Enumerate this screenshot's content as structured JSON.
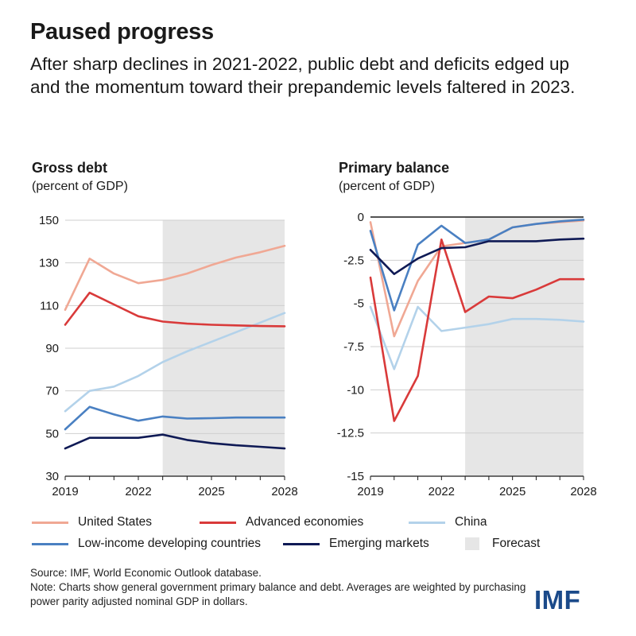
{
  "title": "Paused progress",
  "subtitle": "After sharp declines in 2021-2022, public debt and deficits edged up and the momentum toward their prepandemic levels faltered in 2023.",
  "colors": {
    "united_states": "#f0a894",
    "advanced_economies": "#d93a3a",
    "china": "#b3d2ea",
    "low_income": "#4a80c2",
    "emerging_markets": "#0f1a55",
    "forecast": "#e6e6e6"
  },
  "legend": [
    {
      "key": "united_states",
      "label": "United States"
    },
    {
      "key": "advanced_economies",
      "label": "Advanced economies"
    },
    {
      "key": "china",
      "label": "China"
    },
    {
      "key": "low_income",
      "label": "Low-income developing countries"
    },
    {
      "key": "emerging_markets",
      "label": "Emerging markets"
    },
    {
      "key": "forecast",
      "label": "Forecast"
    }
  ],
  "chart_data": [
    {
      "type": "line",
      "title": "Gross debt",
      "subtitle": "(percent of GDP)",
      "x": [
        2019,
        2020,
        2021,
        2022,
        2023,
        2024,
        2025,
        2026,
        2027,
        2028
      ],
      "x_tick_labels": [
        "2019",
        "2022",
        "2025",
        "2028"
      ],
      "y_tick_labels": [
        "150",
        "130",
        "110",
        "90",
        "70",
        "50",
        "30"
      ],
      "ylim": [
        30,
        150
      ],
      "forecast_from": 2023,
      "grid": true,
      "series": [
        {
          "name": "United States",
          "key": "united_states",
          "values": [
            108,
            132,
            125,
            120.5,
            122,
            125,
            129,
            132.5,
            135,
            138
          ]
        },
        {
          "name": "Advanced economies",
          "key": "advanced_economies",
          "values": [
            101,
            116,
            110.5,
            105,
            102.5,
            101.5,
            101,
            100.7,
            100.4,
            100.3
          ]
        },
        {
          "name": "China",
          "key": "china",
          "values": [
            60.5,
            70,
            72,
            77,
            83.5,
            88.5,
            93,
            97.5,
            102,
            106.5
          ]
        },
        {
          "name": "Low-income developing countries",
          "key": "low_income",
          "values": [
            52,
            62.5,
            59,
            56,
            58,
            57,
            57.2,
            57.5,
            57.5,
            57.5
          ]
        },
        {
          "name": "Emerging markets",
          "key": "emerging_markets",
          "values": [
            43,
            48,
            48,
            48,
            49.5,
            47,
            45.5,
            44.5,
            43.8,
            43
          ]
        }
      ]
    },
    {
      "type": "line",
      "title": "Primary balance",
      "subtitle": "(percent of GDP)",
      "x": [
        2019,
        2020,
        2021,
        2022,
        2023,
        2024,
        2025,
        2026,
        2027,
        2028
      ],
      "x_tick_labels": [
        "2019",
        "2022",
        "2025",
        "2028"
      ],
      "y_tick_labels": [
        "0",
        "-2.5",
        "-5",
        "-7.5",
        "-10",
        "-12.5",
        "-15"
      ],
      "ylim": [
        -15,
        0
      ],
      "forecast_from": 2023,
      "grid": true,
      "series": [
        {
          "name": "United States",
          "key": "united_states",
          "values": [
            -0.3,
            -6.9,
            -3.7,
            -1.7,
            -1.5,
            -1.3,
            -0.6,
            -0.4,
            -0.3,
            -0.2
          ]
        },
        {
          "name": "Advanced economies",
          "key": "advanced_economies",
          "values": [
            -3.5,
            -11.8,
            -9.2,
            -1.3,
            -5.5,
            -4.6,
            -4.7,
            -4.2,
            -3.6,
            -3.6
          ]
        },
        {
          "name": "China",
          "key": "china",
          "values": [
            -5.2,
            -8.8,
            -5.2,
            -6.6,
            -6.4,
            -6.2,
            -5.9,
            -5.9,
            -5.95,
            -6.05
          ]
        },
        {
          "name": "Low-income developing countries",
          "key": "low_income",
          "values": [
            -0.8,
            -5.4,
            -1.6,
            -0.5,
            -1.5,
            -1.3,
            -0.6,
            -0.4,
            -0.25,
            -0.15
          ]
        },
        {
          "name": "Emerging markets",
          "key": "emerging_markets",
          "values": [
            -1.9,
            -3.3,
            -2.4,
            -1.8,
            -1.75,
            -1.4,
            -1.4,
            -1.4,
            -1.3,
            -1.25
          ]
        }
      ]
    }
  ],
  "source_line": "Source: IMF, World Economic Outlook database.",
  "note_line": "Note: Charts show general government primary balance and debt. Averages are weighted by purchasing power parity adjusted nominal GDP in dollars.",
  "logo_text": "IMF"
}
